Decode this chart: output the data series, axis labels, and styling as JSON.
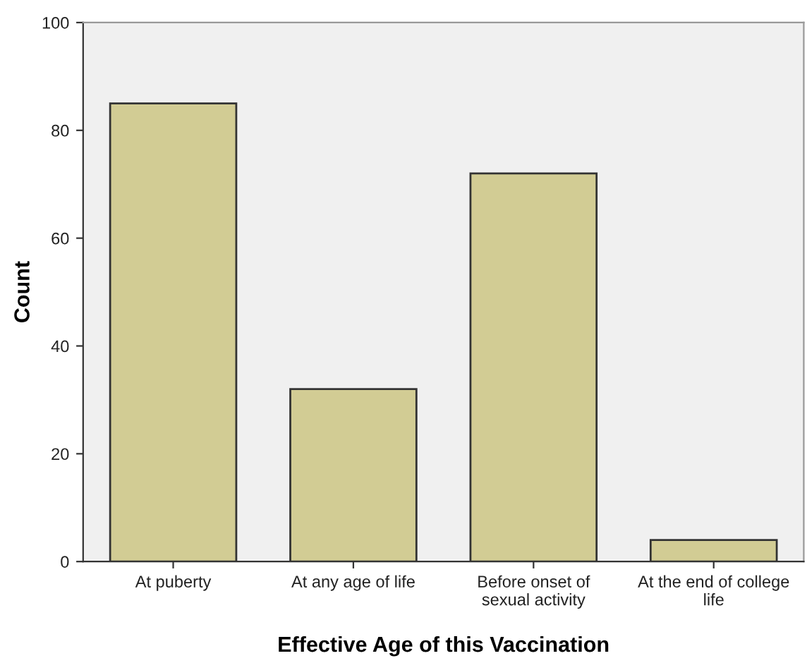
{
  "chart_data": {
    "type": "bar",
    "xlabel": "Effective Age of this Vaccination",
    "ylabel": "Count",
    "categories": [
      "At puberty",
      "At any age of life",
      "Before onset of\nsexual activity",
      "At the end of college\nlife"
    ],
    "values": [
      85,
      32,
      72,
      4
    ],
    "color": "#d2cc94",
    "ylim": [
      0,
      100
    ],
    "yticks": [
      0,
      20,
      40,
      60,
      80,
      100
    ],
    "grid": false
  }
}
